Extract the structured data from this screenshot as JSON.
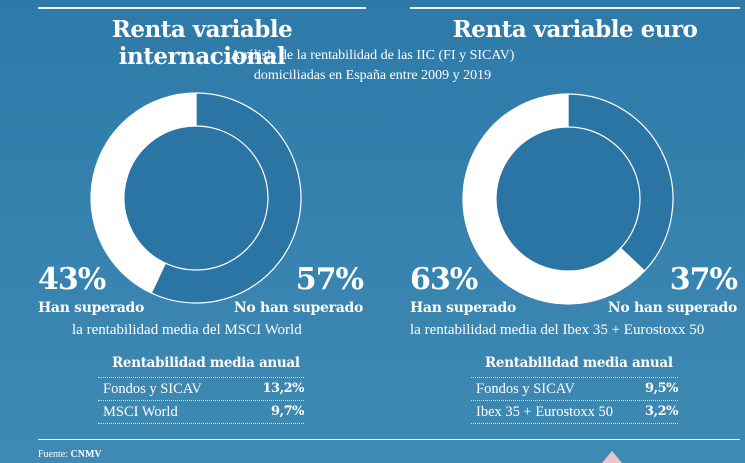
{
  "subtitle_lines": [
    "Análisis de la rentabilidad de las IIC (FI y SICAV)",
    "domiciliadas en España entre 2009 y 2019"
  ],
  "colors": {
    "background": "#3282af",
    "segment_blue": "#2b75a5",
    "segment_white": "#ffffff"
  },
  "chart_data": [
    {
      "type": "pie",
      "title": "Renta variable internacional",
      "slices": [
        {
          "label": "Han superado",
          "value": 43,
          "value_label": "43%",
          "color": "#ffffff"
        },
        {
          "label": "No han superado",
          "value": 57,
          "value_label": "57%",
          "color": "#2b75a5"
        }
      ],
      "caption": "la rentabilidad media del MSCI  World",
      "table": {
        "title": "Rentabilidad media anual",
        "rows": [
          {
            "name": "Fondos y SICAV",
            "value": "13,2%"
          },
          {
            "name": "MSCI World",
            "value": "9,7%"
          }
        ]
      }
    },
    {
      "type": "pie",
      "title": "Renta variable euro",
      "slices": [
        {
          "label": "Han superado",
          "value": 63,
          "value_label": "63%",
          "color": "#ffffff"
        },
        {
          "label": "No han superado",
          "value": 37,
          "value_label": "37%",
          "color": "#2b75a5"
        }
      ],
      "caption": "la rentabilidad media del Ibex 35 + Eurostoxx 50",
      "table": {
        "title": "Rentabilidad media anual",
        "rows": [
          {
            "name": "Fondos y SICAV",
            "value": "9,5%"
          },
          {
            "name": "Ibex 35 + Eurostoxx 50",
            "value": "3,2%"
          }
        ]
      }
    }
  ],
  "source": {
    "label": "Fuente:",
    "value": "CNMV"
  }
}
